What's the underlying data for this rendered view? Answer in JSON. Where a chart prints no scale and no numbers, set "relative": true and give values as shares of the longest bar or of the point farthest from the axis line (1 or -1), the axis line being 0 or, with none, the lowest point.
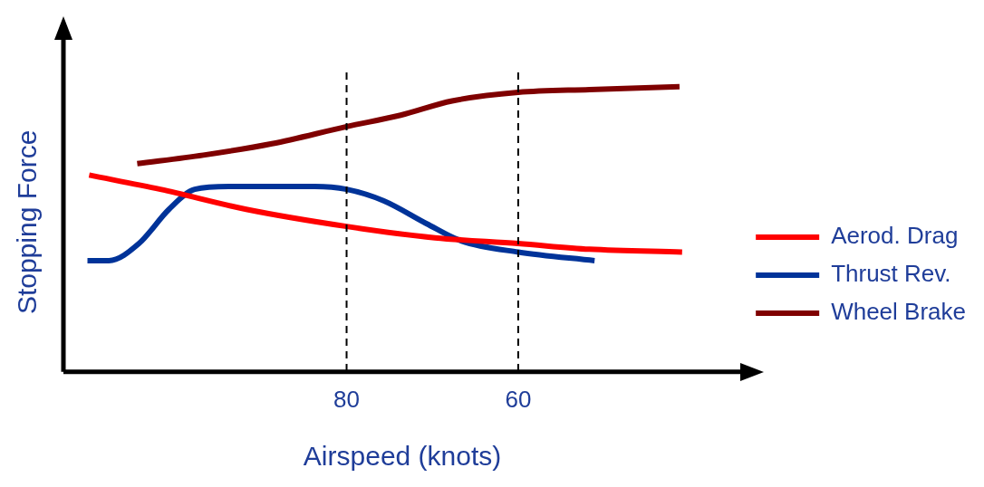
{
  "chart_data": {
    "type": "line",
    "xlabel": "Airspeed (knots)",
    "ylabel": "Stopping Force",
    "relative": true,
    "xlim": [
      113,
      34
    ],
    "xticks": [
      80,
      60
    ],
    "grid": false,
    "legend": "right",
    "marker": "none",
    "line_style": "solid",
    "ref_lines": [
      {
        "axis": "x",
        "value": 80,
        "color": "#000000",
        "line_style": "dashed"
      },
      {
        "axis": "x",
        "value": 60,
        "color": "#000000",
        "line_style": "dashed"
      }
    ],
    "series": [
      {
        "name": "Aerod. Drag",
        "color": "#ff0000",
        "x": [
          110,
          101.7,
          91.7,
          80,
          69.7,
          60,
          51.7,
          40.9
        ],
        "values": [
          0.69,
          0.64,
          0.57,
          0.51,
          0.47,
          0.45,
          0.43,
          0.42
        ]
      },
      {
        "name": "Thrust Rev.",
        "color": "#003399",
        "x": [
          110.2,
          107.7,
          104.2,
          100.7,
          97.7,
          93.7,
          83.7,
          80,
          75.7,
          70.7,
          66.7,
          60,
          51.1
        ],
        "values": [
          0.39,
          0.39,
          0.45,
          0.57,
          0.64,
          0.65,
          0.65,
          0.64,
          0.6,
          0.52,
          0.46,
          0.42,
          0.39
        ]
      },
      {
        "name": "Wheel Brake",
        "color": "#7f0000",
        "x": [
          104.4,
          96.7,
          88.7,
          80,
          73.7,
          67.7,
          60,
          51.7,
          41.2
        ],
        "values": [
          0.73,
          0.76,
          0.8,
          0.86,
          0.9,
          0.95,
          0.98,
          0.99,
          1
        ]
      }
    ]
  }
}
